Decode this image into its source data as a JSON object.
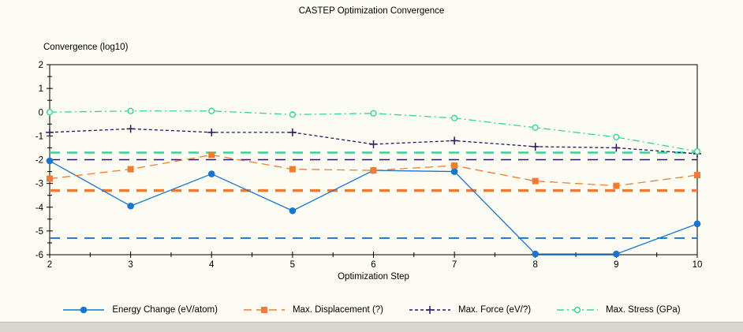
{
  "window": {
    "bottom_strip_color": "#d8d5cc",
    "background": "#fcfcf2"
  },
  "chart_data": {
    "type": "line",
    "title": "CASTEP Optimization Convergence",
    "xlabel": "Optimization Step",
    "ylabel": "Convergence (log10)",
    "xlim": [
      2,
      10
    ],
    "ylim": [
      -6,
      2
    ],
    "x_major_ticks": [
      2,
      3,
      4,
      5,
      6,
      7,
      8,
      9,
      10
    ],
    "y_major_ticks": [
      2,
      1,
      0,
      -1,
      -2,
      -3,
      -4,
      -5,
      -6
    ],
    "minor_tick_step": 0.5,
    "grid": false,
    "legend_position": "bottom",
    "x": [
      2,
      3,
      4,
      5,
      6,
      7,
      8,
      9,
      10
    ],
    "series": [
      {
        "name": "Energy Change (eV/atom)",
        "color": "#1a75d2",
        "marker": "circle",
        "line_style": "solid",
        "values": [
          -2.05,
          -3.95,
          -2.6,
          -4.15,
          -2.45,
          -2.5,
          -5.97,
          -5.97,
          -4.7
        ],
        "threshold": -5.3,
        "threshold_weight": 1.8
      },
      {
        "name": "Max. Displacement (?)",
        "color": "#ee7d33",
        "marker": "square",
        "line_style": "dashed",
        "values": [
          -2.8,
          -2.4,
          -1.8,
          -2.4,
          -2.45,
          -2.25,
          -2.9,
          -3.1,
          -2.65
        ],
        "threshold": -3.3,
        "threshold_weight": 3.5
      },
      {
        "name": "Max. Force (eV/?)",
        "color": "#2e1065",
        "marker": "plus",
        "line_style": "dotted",
        "values": [
          -0.85,
          -0.7,
          -0.85,
          -0.85,
          -1.35,
          -1.2,
          -1.45,
          -1.5,
          -1.75
        ],
        "threshold": -2.0,
        "threshold_weight": 1.6
      },
      {
        "name": "Max. Stress (GPa)",
        "color": "#35d59b",
        "marker": "circle-open",
        "line_style": "dashdot",
        "values": [
          0.0,
          0.05,
          0.05,
          -0.1,
          -0.05,
          -0.25,
          -0.65,
          -1.05,
          -1.65
        ],
        "threshold": -1.7,
        "threshold_weight": 2.5
      }
    ]
  }
}
